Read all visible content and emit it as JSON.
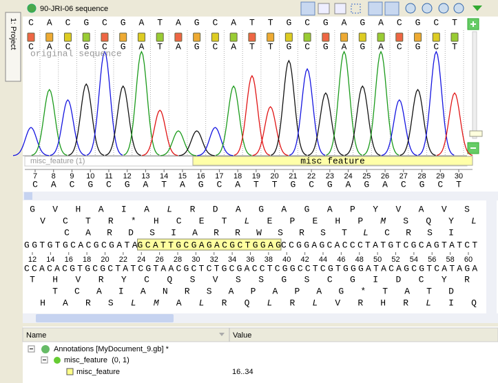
{
  "sidebar": {
    "tab": "1: Project"
  },
  "window_title": "90-JRI-06 sequence",
  "chromatogram": {
    "called_bases": [
      "C",
      "A",
      "C",
      "G",
      "C",
      "G",
      "A",
      "T",
      "A",
      "G",
      "C",
      "A",
      "T",
      "T",
      "G",
      "C",
      "G",
      "A",
      "G",
      "A",
      "C",
      "G",
      "C",
      "T"
    ],
    "original_bases": [
      "C",
      "A",
      "C",
      "G",
      "C",
      "G",
      "A",
      "T",
      "A",
      "G",
      "C",
      "A",
      "T",
      "T",
      "G",
      "C",
      "G",
      "A",
      "G",
      "A",
      "C",
      "G",
      "C",
      "T"
    ],
    "original_label": "original sequence",
    "feature_track": {
      "label": "misc_feature (1)",
      "feature": "misc feature"
    },
    "ruler": [
      7,
      8,
      9,
      10,
      11,
      12,
      13,
      14,
      15,
      16,
      17,
      18,
      19,
      20,
      21,
      22,
      23,
      24,
      25,
      26,
      27,
      28,
      29,
      30
    ],
    "bases": [
      "C",
      "A",
      "C",
      "G",
      "C",
      "G",
      "A",
      "T",
      "A",
      "G",
      "C",
      "A",
      "T",
      "T",
      "G",
      "C",
      "G",
      "A",
      "G",
      "A",
      "C",
      "G",
      "C",
      "T"
    ]
  },
  "sequence_view": {
    "frames_top": [
      [
        "G",
        "V",
        "H",
        "A",
        "I",
        "A",
        "L",
        "R",
        "D",
        "A",
        "G",
        "A",
        "G",
        "A",
        "P",
        "Y",
        "V",
        "A",
        "V",
        "S"
      ],
      [
        "V",
        "C",
        "T",
        "R",
        "*",
        "H",
        "C",
        "E",
        "T",
        "L",
        "E",
        "P",
        "E",
        "H",
        "P",
        "M",
        "S",
        "Q",
        "Y",
        "L"
      ],
      [
        "C",
        "A",
        "R",
        "D",
        "S",
        "I",
        "A",
        "R",
        "R",
        "W",
        "S",
        "R",
        "S",
        "T",
        "L",
        "C",
        "R",
        "S",
        "I"
      ]
    ],
    "sequence": {
      "before": "GGTGTGCACGCGATA",
      "feature": "GCATTGCGAGACGCTGGAG",
      "after": "CCGGAGCACCCTATGTCGCAGTATCT"
    },
    "ruler": [
      12,
      14,
      16,
      18,
      20,
      22,
      24,
      26,
      28,
      30,
      32,
      34,
      36,
      38,
      40,
      42,
      44,
      46,
      48,
      50,
      52,
      54,
      56,
      58,
      60
    ],
    "complement": "CCACACGTGCGCTATCGTAACGCTCTGCGACCTCGGCCTCGTGGGATACAGCGTCATAGA",
    "frames_bottom": [
      [
        "T",
        "H",
        "V",
        "R",
        "Y",
        "C",
        "Q",
        "S",
        "V",
        "S",
        "S",
        "G",
        "S",
        "C",
        "G",
        "I",
        "D",
        "C",
        "Y",
        "R"
      ],
      [
        "T",
        "C",
        "A",
        "I",
        "A",
        "N",
        "R",
        "S",
        "A",
        "P",
        "A",
        "P",
        "A",
        "G",
        "*",
        "T",
        "A",
        "T",
        "D"
      ],
      [
        "H",
        "A",
        "R",
        "S",
        "L",
        "M",
        "A",
        "L",
        "R",
        "Q",
        "L",
        "R",
        "L",
        "V",
        "R",
        "H",
        "R",
        "L",
        "I",
        "Q"
      ]
    ]
  },
  "annotations": {
    "columns": [
      "Name",
      "Value"
    ],
    "rows": [
      {
        "name": "Annotations [MyDocument_9.gb] *"
      },
      {
        "name": "misc_feature  (0, 1)"
      },
      {
        "name": "misc_feature",
        "value": "16..34"
      }
    ]
  }
}
